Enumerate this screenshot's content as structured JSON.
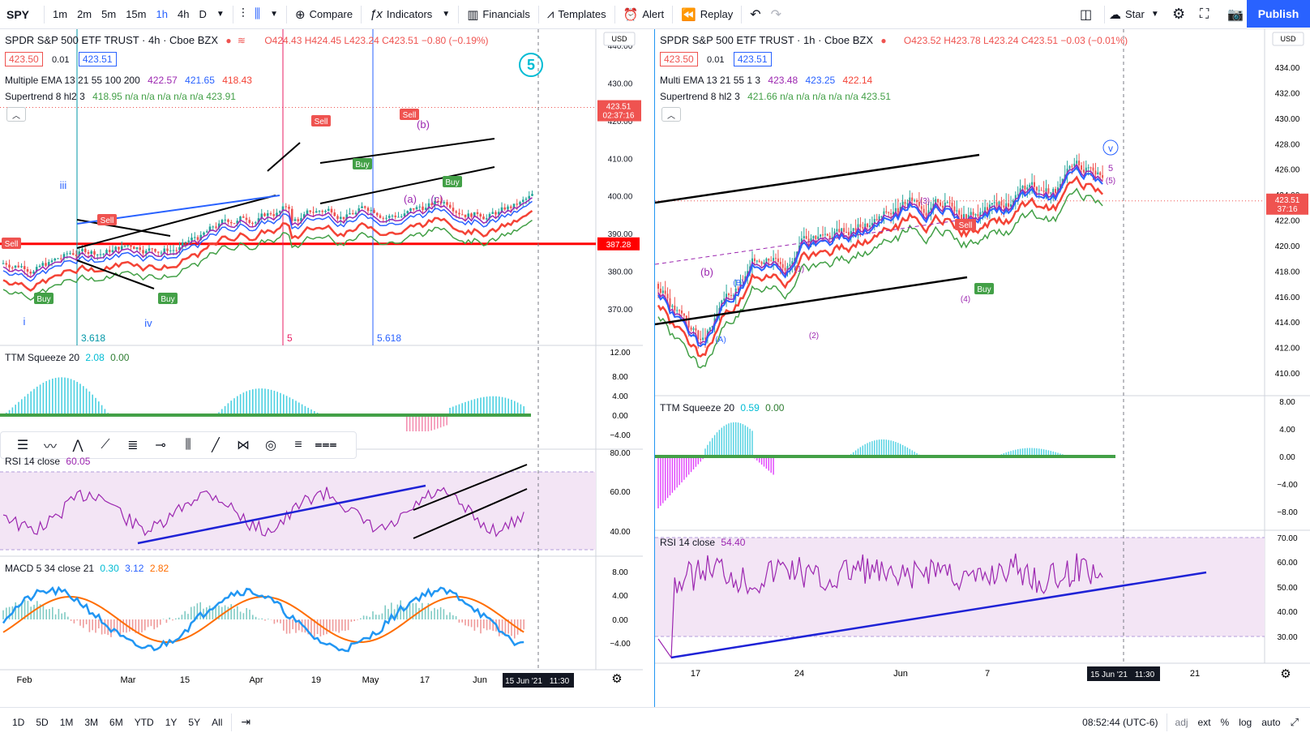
{
  "toolbar": {
    "symbol": "SPY",
    "intervals": [
      "1m",
      "2m",
      "5m",
      "15m",
      "1h",
      "4h",
      "D"
    ],
    "active_interval": "1h",
    "compare": "Compare",
    "indicators": "Indicators",
    "financials": "Financials",
    "templates": "Templates",
    "alert": "Alert",
    "replay": "Replay",
    "layout_name": "Star",
    "publish": "Publish"
  },
  "bottom": {
    "ranges": [
      "1D",
      "5D",
      "1M",
      "3M",
      "6M",
      "YTD",
      "1Y",
      "5Y",
      "All"
    ],
    "time": "08:52:44 (UTC-6)",
    "adj": "adj",
    "ext": "ext",
    "pct": "%",
    "log": "log",
    "auto": "auto"
  },
  "left": {
    "title": "SPDR S&P 500 ETF TRUST · 4h · Cboe BZX",
    "ohlc": "O424.43 H424.45 L423.24 C423.51 −0.80 (−0.19%)",
    "bid": "423.50",
    "spread": "0.01",
    "ask": "423.51",
    "currency": "USD",
    "ema_label": "Multiple EMA 13 21 55 100 200",
    "ema_vals": [
      "422.57",
      "421.65",
      "418.43"
    ],
    "st_label": "Supertrend 8 hl2 3",
    "st_vals": "418.95  n/a  n/a  n/a  n/a  n/a  423.91",
    "price_ticks": [
      "440.00",
      "430.00",
      "420.00",
      "410.00",
      "400.00",
      "390.00",
      "380.00",
      "370.00"
    ],
    "last_price": "423.51",
    "countdown": "02:37:16",
    "hline_price": "387.28",
    "fib_labels": [
      "3.618",
      "5",
      "5.618"
    ],
    "ttm_label": "TTM Squeeze 20",
    "ttm_v1": "2.08",
    "ttm_v2": "0.00",
    "ttm_ticks": [
      "12.00",
      "8.00",
      "4.00",
      "0.00",
      "−4.00"
    ],
    "rsi_label": "RSI 14 close",
    "rsi_val": "60.05",
    "rsi_ticks": [
      "80.00",
      "60.00",
      "40.00"
    ],
    "macd_label": "MACD 5 34 close 21",
    "macd_v1": "0.30",
    "macd_v2": "3.12",
    "macd_v3": "2.82",
    "macd_ticks": [
      "8.00",
      "4.00",
      "0.00",
      "−4.00"
    ],
    "x_labels": [
      "Feb",
      "Mar",
      "15",
      "Apr",
      "19",
      "May",
      "17",
      "Jun"
    ],
    "cursor_date": "15 Jun '21",
    "cursor_time": "11:30",
    "wave_labels": [
      "5",
      "iii",
      "iv",
      "i",
      "(a)",
      "(c)",
      "(b)",
      "Sell",
      "Buy"
    ]
  },
  "right": {
    "title": "SPDR S&P 500 ETF TRUST · 1h · Cboe BZX",
    "ohlc": "O423.52 H423.78 L423.24 C423.51 −0.03 (−0.01%)",
    "bid": "423.50",
    "spread": "0.01",
    "ask": "423.51",
    "currency": "USD",
    "ema_label": "Multi EMA 13 21 55 1 3",
    "ema_vals": [
      "423.48",
      "423.25",
      "422.14"
    ],
    "st_label": "Supertrend 8 hl2 3",
    "st_vals": "421.66  n/a  n/a  n/a  n/a  n/a  423.51",
    "price_ticks": [
      "434.00",
      "432.00",
      "430.00",
      "428.00",
      "426.00",
      "424.00",
      "422.00",
      "420.00",
      "418.00",
      "416.00",
      "414.00",
      "412.00",
      "410.00"
    ],
    "last_price": "423.51",
    "countdown": "37:16",
    "ttm_label": "TTM Squeeze 20",
    "ttm_v1": "0.59",
    "ttm_v2": "0.00",
    "ttm_ticks": [
      "8.00",
      "4.00",
      "0.00",
      "−4.00",
      "−8.00"
    ],
    "rsi_label": "RSI 14 close",
    "rsi_val": "54.40",
    "rsi_ticks": [
      "70.00",
      "60.00",
      "50.00",
      "40.00",
      "30.00"
    ],
    "x_labels": [
      "17",
      "24",
      "Jun",
      "7",
      "21"
    ],
    "cursor_date": "15 Jun '21",
    "cursor_time": "11:30",
    "wave_labels": [
      "(b)",
      "(B)",
      "(A)",
      "(1)",
      "(2)",
      "(3)",
      "(4)",
      "(5)",
      "v",
      "5",
      "Sell",
      "Buy"
    ]
  },
  "colors": {
    "accent": "#2962ff",
    "up": "#26a69a",
    "down": "#ef5350",
    "ema_fast": "#9c27b0",
    "ema_mid": "#2962ff",
    "ema_slow": "#f44336",
    "supertrend": "#43a047",
    "rsi_fill": "#f3e5f5"
  }
}
